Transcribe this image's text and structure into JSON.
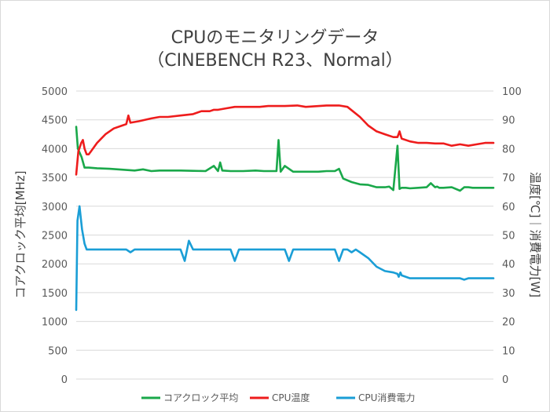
{
  "chart_data": {
    "type": "line",
    "title": "CPUのモニタリングデータ",
    "subtitle": "（CINEBENCH R23、Normal）",
    "ylabel": "コアクロック平均[MHz]",
    "y2label": "温度[℃]｜消費電力[W]",
    "ylim": [
      0,
      5000
    ],
    "y2lim": [
      0,
      100
    ],
    "yticks": [
      "0",
      "500",
      "1000",
      "1500",
      "2000",
      "2500",
      "3000",
      "3500",
      "4000",
      "4500",
      "5000"
    ],
    "y2ticks": [
      "0",
      "10",
      "20",
      "30",
      "40",
      "50",
      "60",
      "70",
      "80",
      "90",
      "100"
    ],
    "grid": true,
    "legend_position": "bottom",
    "x_range": [
      0,
      100
    ],
    "series": [
      {
        "name": "コアクロック平均",
        "axis": "left",
        "color": "#1aa84a",
        "x": [
          0,
          0.4,
          1.3,
          2,
          3,
          5,
          8,
          10,
          12,
          14,
          16,
          18,
          20,
          22,
          25,
          28,
          31,
          33,
          34,
          34.5,
          35,
          37,
          40,
          43,
          45,
          47,
          48,
          48.5,
          49,
          50,
          52,
          55,
          58,
          60,
          62,
          63,
          64,
          66,
          68,
          70,
          72,
          74,
          75,
          76,
          77,
          77.5,
          78,
          79,
          80,
          82,
          84,
          85,
          86,
          86.5,
          87,
          88,
          90,
          92,
          93,
          94,
          95,
          97,
          100
        ],
        "y": [
          4380,
          4000,
          3850,
          3670,
          3670,
          3660,
          3650,
          3640,
          3630,
          3620,
          3640,
          3610,
          3620,
          3620,
          3620,
          3615,
          3610,
          3700,
          3610,
          3760,
          3620,
          3610,
          3610,
          3620,
          3610,
          3610,
          3610,
          4150,
          3600,
          3700,
          3600,
          3600,
          3600,
          3610,
          3610,
          3650,
          3480,
          3420,
          3380,
          3370,
          3330,
          3330,
          3340,
          3280,
          4050,
          3300,
          3320,
          3320,
          3310,
          3320,
          3330,
          3400,
          3330,
          3340,
          3320,
          3320,
          3330,
          3270,
          3330,
          3330,
          3320,
          3320,
          3320
        ]
      },
      {
        "name": "CPU温度",
        "axis": "right",
        "color": "#ee1c1c",
        "x": [
          0,
          0.5,
          1.2,
          1.6,
          2,
          2.5,
          3,
          3.5,
          5,
          7,
          9,
          11,
          12,
          12.5,
          13,
          15,
          18,
          20,
          22,
          25,
          28,
          30,
          32,
          33,
          34,
          36,
          38,
          40,
          42,
          44,
          46,
          50,
          53,
          55,
          60,
          63,
          65,
          68,
          70,
          72,
          74,
          76,
          77,
          77.5,
          78,
          80,
          82,
          84,
          86,
          87,
          88,
          90,
          92,
          94,
          96,
          98,
          100
        ],
        "y": [
          71,
          79,
          82,
          83,
          80,
          78,
          78,
          79,
          82,
          85,
          87,
          88,
          88.5,
          91.5,
          89,
          89.5,
          90.5,
          91,
          91,
          91.5,
          92,
          93,
          93,
          93.5,
          93.5,
          94,
          94.5,
          94.5,
          94.5,
          94.5,
          94.8,
          94.8,
          95,
          94.5,
          95,
          95,
          94.5,
          91,
          88,
          86,
          85,
          84,
          84,
          86,
          83.5,
          82.5,
          82,
          82,
          81.8,
          81.8,
          81.8,
          81,
          81.5,
          81,
          81.5,
          82,
          82
        ]
      },
      {
        "name": "CPU消費電力",
        "axis": "right",
        "color": "#1a9ed6",
        "x": [
          0,
          0.3,
          0.8,
          1.4,
          2,
          2.5,
          3,
          5,
          8,
          12,
          13,
          14,
          16,
          20,
          25,
          26,
          27,
          28,
          32,
          37,
          38,
          39,
          40,
          44,
          50,
          51,
          52,
          53,
          57,
          62,
          63,
          64,
          65,
          66,
          67,
          68,
          70,
          72,
          74,
          76,
          77,
          77.3,
          77.7,
          78,
          80,
          82,
          84,
          85,
          86,
          88,
          90,
          92,
          93,
          94,
          96,
          98,
          100
        ],
        "y": [
          24,
          55,
          60,
          52,
          47,
          45,
          45,
          45,
          45,
          45,
          44,
          45,
          45,
          45,
          45,
          41,
          48,
          45,
          45,
          45,
          41,
          45,
          45,
          45,
          45,
          41,
          45,
          45,
          45,
          45,
          41,
          45,
          45,
          44,
          45,
          44,
          42,
          39,
          37.5,
          37,
          36.5,
          35.5,
          37,
          36,
          35,
          35,
          35,
          35,
          35,
          35,
          35,
          35,
          34.5,
          35,
          35,
          35,
          35
        ]
      }
    ]
  }
}
